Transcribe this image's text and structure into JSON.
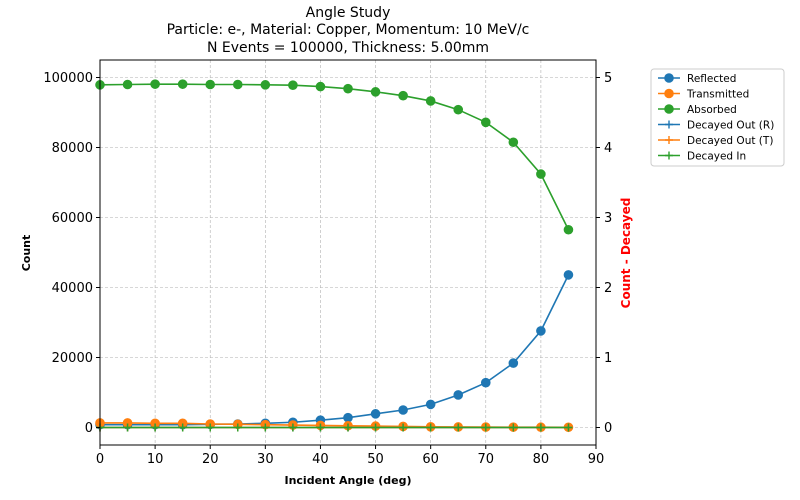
{
  "chart_data": {
    "type": "line",
    "title_lines": [
      "Angle Study",
      "Particle: e-, Material: Copper, Momentum: 10 MeV/c",
      "N Events = 100000, Thickness: 5.00mm"
    ],
    "xlabel": "Incident Angle (deg)",
    "ylabel": "Count",
    "y2label": "Count - Decayed",
    "xlim": [
      0,
      90
    ],
    "ylim": [
      -5000,
      105000
    ],
    "y2lim": [
      -0.25,
      5.25
    ],
    "x_ticks": [
      0,
      10,
      20,
      30,
      40,
      50,
      60,
      70,
      80,
      90
    ],
    "y_ticks": [
      0,
      20000,
      40000,
      60000,
      80000,
      100000
    ],
    "y2_ticks": [
      0,
      1,
      2,
      3,
      4,
      5
    ],
    "grid": true,
    "legend_position": "outside-right",
    "x": [
      0,
      5,
      10,
      15,
      20,
      25,
      30,
      35,
      40,
      45,
      50,
      55,
      60,
      65,
      70,
      75,
      80,
      85
    ],
    "series": [
      {
        "name": "Reflected",
        "axis": "left",
        "marker": "circle",
        "color": "#1f77b4",
        "values": [
          800,
          800,
          800,
          800,
          900,
          1000,
          1200,
          1500,
          2100,
          2800,
          3900,
          5000,
          6600,
          9300,
          12800,
          18400,
          27600,
          43600
        ]
      },
      {
        "name": "Transmitted",
        "axis": "left",
        "marker": "circle",
        "color": "#ff7f0e",
        "values": [
          1300,
          1300,
          1200,
          1200,
          1000,
          900,
          800,
          700,
          600,
          500,
          400,
          300,
          200,
          150,
          120,
          100,
          80,
          60
        ]
      },
      {
        "name": "Absorbed",
        "axis": "left",
        "marker": "circle",
        "color": "#2ca02c",
        "values": [
          97900,
          98000,
          98100,
          98100,
          98000,
          98000,
          97900,
          97800,
          97400,
          96800,
          95900,
          94800,
          93300,
          90800,
          87200,
          81500,
          72400,
          56500
        ]
      },
      {
        "name": "Decayed Out (R)",
        "axis": "right",
        "marker": "plus",
        "color": "#1f77b4",
        "values": [
          0,
          0,
          0,
          0,
          0,
          0,
          0,
          0,
          0,
          0,
          0,
          0,
          0,
          0,
          0,
          0,
          0,
          0
        ]
      },
      {
        "name": "Decayed Out (T)",
        "axis": "right",
        "marker": "plus",
        "color": "#ff7f0e",
        "values": [
          0,
          0,
          0,
          0,
          0,
          0,
          0,
          0,
          0,
          0,
          0,
          0,
          0,
          0,
          0,
          0,
          0,
          0
        ]
      },
      {
        "name": "Decayed In",
        "axis": "right",
        "marker": "plus",
        "color": "#2ca02c",
        "values": [
          0,
          0,
          0,
          0,
          0,
          0,
          0,
          0,
          0,
          0,
          0,
          0,
          0,
          0,
          0,
          0,
          0,
          0
        ]
      }
    ]
  }
}
